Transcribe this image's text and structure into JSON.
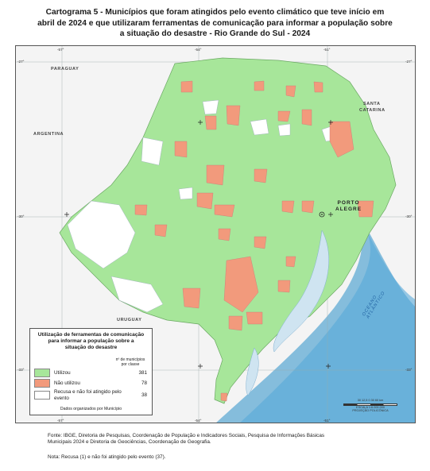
{
  "title": {
    "line1": "Cartograma 5 - Municípios que foram atingidos pelo evento climático que teve início em",
    "line2": "abril de 2024 e que utilizaram ferramentas de comunicação para informar a população sobre",
    "line3": "a situação do desastre - Rio Grande do Sul - 2024"
  },
  "map": {
    "neighbors": {
      "paraguay": "PARAGUAY",
      "argentina": "ARGENTINA",
      "uruguay": "URUGUAY",
      "santa_catarina_1": "SANTA",
      "santa_catarina_2": "CATARINA"
    },
    "capital": {
      "line1": "PORTO",
      "line2": "ALEGRE"
    },
    "ocean": "OCEANO ATLÂNTICO",
    "coordinates": {
      "lon_top": [
        "-57°",
        "-54°",
        "-51°"
      ],
      "lon_bottom": [
        "-57°",
        "-54°",
        "-51°"
      ],
      "lat_left": [
        "-27°",
        "-30°",
        "-33°"
      ],
      "lat_right": [
        "-27°",
        "-30°",
        "-33°"
      ]
    },
    "colors": {
      "utilizou": "#a7e69a",
      "nao_utilizou": "#f29a7c",
      "recusa": "#ffffff",
      "outside": "#f4f4f4",
      "water": "#cfe4f1",
      "ocean": "#2a8fc9"
    }
  },
  "legend": {
    "title_line1": "Utilização de ferramentas de comunicação",
    "title_line2": "para informar a população sobre a",
    "title_line3": "situação do desastre",
    "count_header_line1": "nº de municípios",
    "count_header_line2": "por classe",
    "items": [
      {
        "label": "Utilizou",
        "count": "381",
        "color": "#a7e69a"
      },
      {
        "label": "Não utilizou",
        "count": "78",
        "color": "#f29a7c"
      },
      {
        "label": "Recusa e não foi atingido pelo evento",
        "count": "38",
        "color": "#ffffff"
      }
    ],
    "footer": "Dados organizados por Município"
  },
  "scale": {
    "ticks": "30 12,5 0      30     60 km",
    "ratio": "ESCALA 1:6.000.000",
    "projection": "PROJEÇÃO POLICÔNICA"
  },
  "source": {
    "line1": "Fonte: IBGE, Diretoria de Pesquisas, Coordenação de População e Indicadores Sociais, Pesquisa de Informações Básicas",
    "line2": "Municipais 2024 e Diretoria de Geociências, Coordenação de Geografia.",
    "note": "Nota: Recusa (1) e não foi atingido pelo evento (37)."
  }
}
